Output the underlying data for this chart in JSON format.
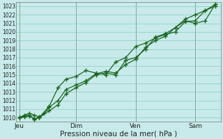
{
  "xlabel": "Pression niveau de la mer( hPa )",
  "ylim": [
    1009.5,
    1023.5
  ],
  "xlim": [
    0,
    10.3
  ],
  "yticks": [
    1010,
    1011,
    1012,
    1013,
    1014,
    1015,
    1016,
    1017,
    1018,
    1019,
    1020,
    1021,
    1022,
    1023
  ],
  "xtick_labels": [
    "Jeu",
    "Dim",
    "Ven",
    "Sam"
  ],
  "xtick_positions": [
    0.15,
    3.0,
    6.0,
    9.0
  ],
  "bg_color": "#c8eaea",
  "grid_color": "#88ccbb",
  "line_color": "#1a6620",
  "series1_x": [
    0.15,
    0.4,
    0.65,
    0.9,
    1.15,
    1.4,
    1.65,
    2.1,
    2.5,
    3.0,
    3.5,
    4.0,
    4.5,
    5.0,
    5.5,
    6.0,
    6.5,
    7.0,
    7.5,
    8.0,
    8.5,
    9.0,
    9.5,
    10.0
  ],
  "series1_y": [
    1010.0,
    1010.3,
    1010.5,
    1010.3,
    1010.1,
    1010.5,
    1011.2,
    1012.0,
    1013.3,
    1013.8,
    1014.3,
    1015.1,
    1015.4,
    1015.2,
    1016.2,
    1016.8,
    1018.2,
    1019.0,
    1019.5,
    1020.5,
    1021.5,
    1022.0,
    1022.5,
    1023.0
  ],
  "series2_x": [
    0.15,
    0.4,
    0.65,
    0.9,
    1.15,
    1.65,
    2.1,
    2.5,
    3.0,
    3.5,
    4.0,
    4.5,
    5.0,
    5.5,
    6.0,
    6.5,
    7.0,
    7.5,
    8.0,
    8.5,
    9.0,
    9.5,
    10.0
  ],
  "series2_y": [
    1010.0,
    1010.2,
    1010.3,
    1009.8,
    1010.0,
    1011.3,
    1013.5,
    1014.5,
    1014.8,
    1015.5,
    1015.2,
    1015.0,
    1016.5,
    1017.0,
    1018.3,
    1018.7,
    1019.3,
    1019.7,
    1020.0,
    1021.2,
    1021.3,
    1022.5,
    1023.2
  ],
  "series3_x": [
    0.15,
    0.4,
    0.65,
    0.9,
    1.15,
    1.65,
    2.1,
    2.5,
    3.0,
    3.5,
    4.0,
    4.5,
    5.0,
    5.5,
    6.0,
    6.5,
    7.0,
    7.5,
    8.0,
    8.5,
    9.0,
    9.5,
    10.0
  ],
  "series3_y": [
    1010.0,
    1010.1,
    1010.2,
    1009.9,
    1010.0,
    1010.8,
    1011.5,
    1012.8,
    1013.5,
    1014.1,
    1015.0,
    1015.2,
    1015.0,
    1016.7,
    1017.0,
    1018.0,
    1019.4,
    1019.8,
    1020.5,
    1021.3,
    1021.0,
    1021.3,
    1023.2
  ],
  "vline_color": "#556655",
  "vline_positions": [
    0.15,
    3.0,
    6.0,
    9.0
  ],
  "marker": "+",
  "markersize": 4,
  "linewidth": 0.9
}
